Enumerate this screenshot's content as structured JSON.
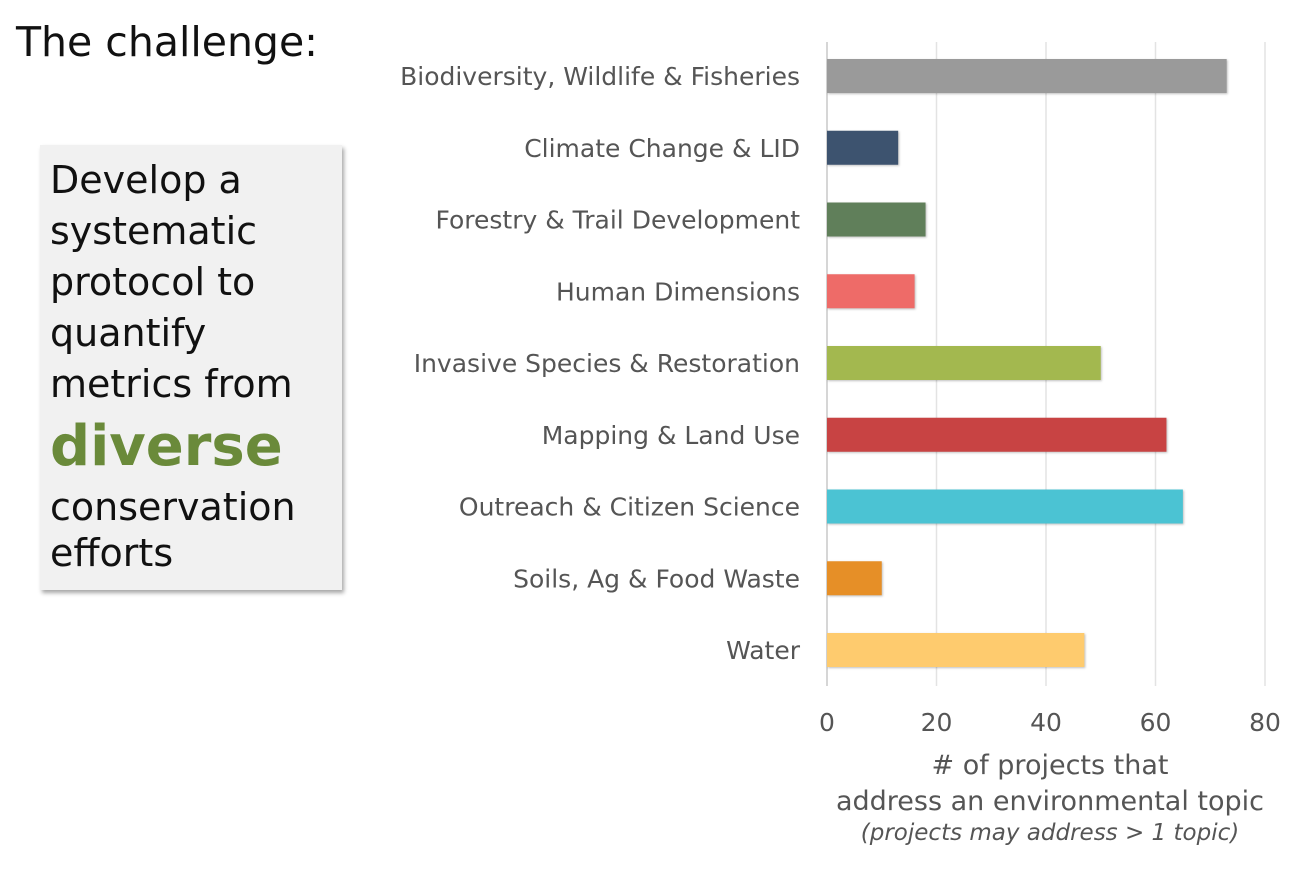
{
  "heading": "The challenge:",
  "callout": {
    "lines_before": [
      "Develop a",
      "systematic",
      "protocol to",
      "quantify",
      "metrics from"
    ],
    "highlight": "diverse",
    "lines_after": [
      "conservation",
      "efforts"
    ],
    "highlight_color": "#6a8a3a"
  },
  "chart_data": {
    "type": "bar",
    "orientation": "horizontal",
    "categories": [
      "Biodiversity, Wildlife & Fisheries",
      "Climate Change & LID",
      "Forestry & Trail Development",
      "Human Dimensions",
      "Invasive Species & Restoration",
      "Mapping & Land Use",
      "Outreach & Citizen Science",
      "Soils, Ag & Food Waste",
      "Water"
    ],
    "values": [
      73,
      13,
      18,
      16,
      50,
      62,
      65,
      10,
      47
    ],
    "colors": [
      "#9a9a9a",
      "#3d536f",
      "#607f5a",
      "#ee6b68",
      "#a3b84f",
      "#c84343",
      "#4bc3d3",
      "#e68f27",
      "#fecb6e"
    ],
    "xlim": [
      0,
      80
    ],
    "xticks": [
      0,
      20,
      40,
      60,
      80
    ],
    "grid": true,
    "xlabel_lines": [
      "# of projects that",
      "address an environmental topic"
    ],
    "xlabel_note": "(projects may address > 1 topic)"
  }
}
